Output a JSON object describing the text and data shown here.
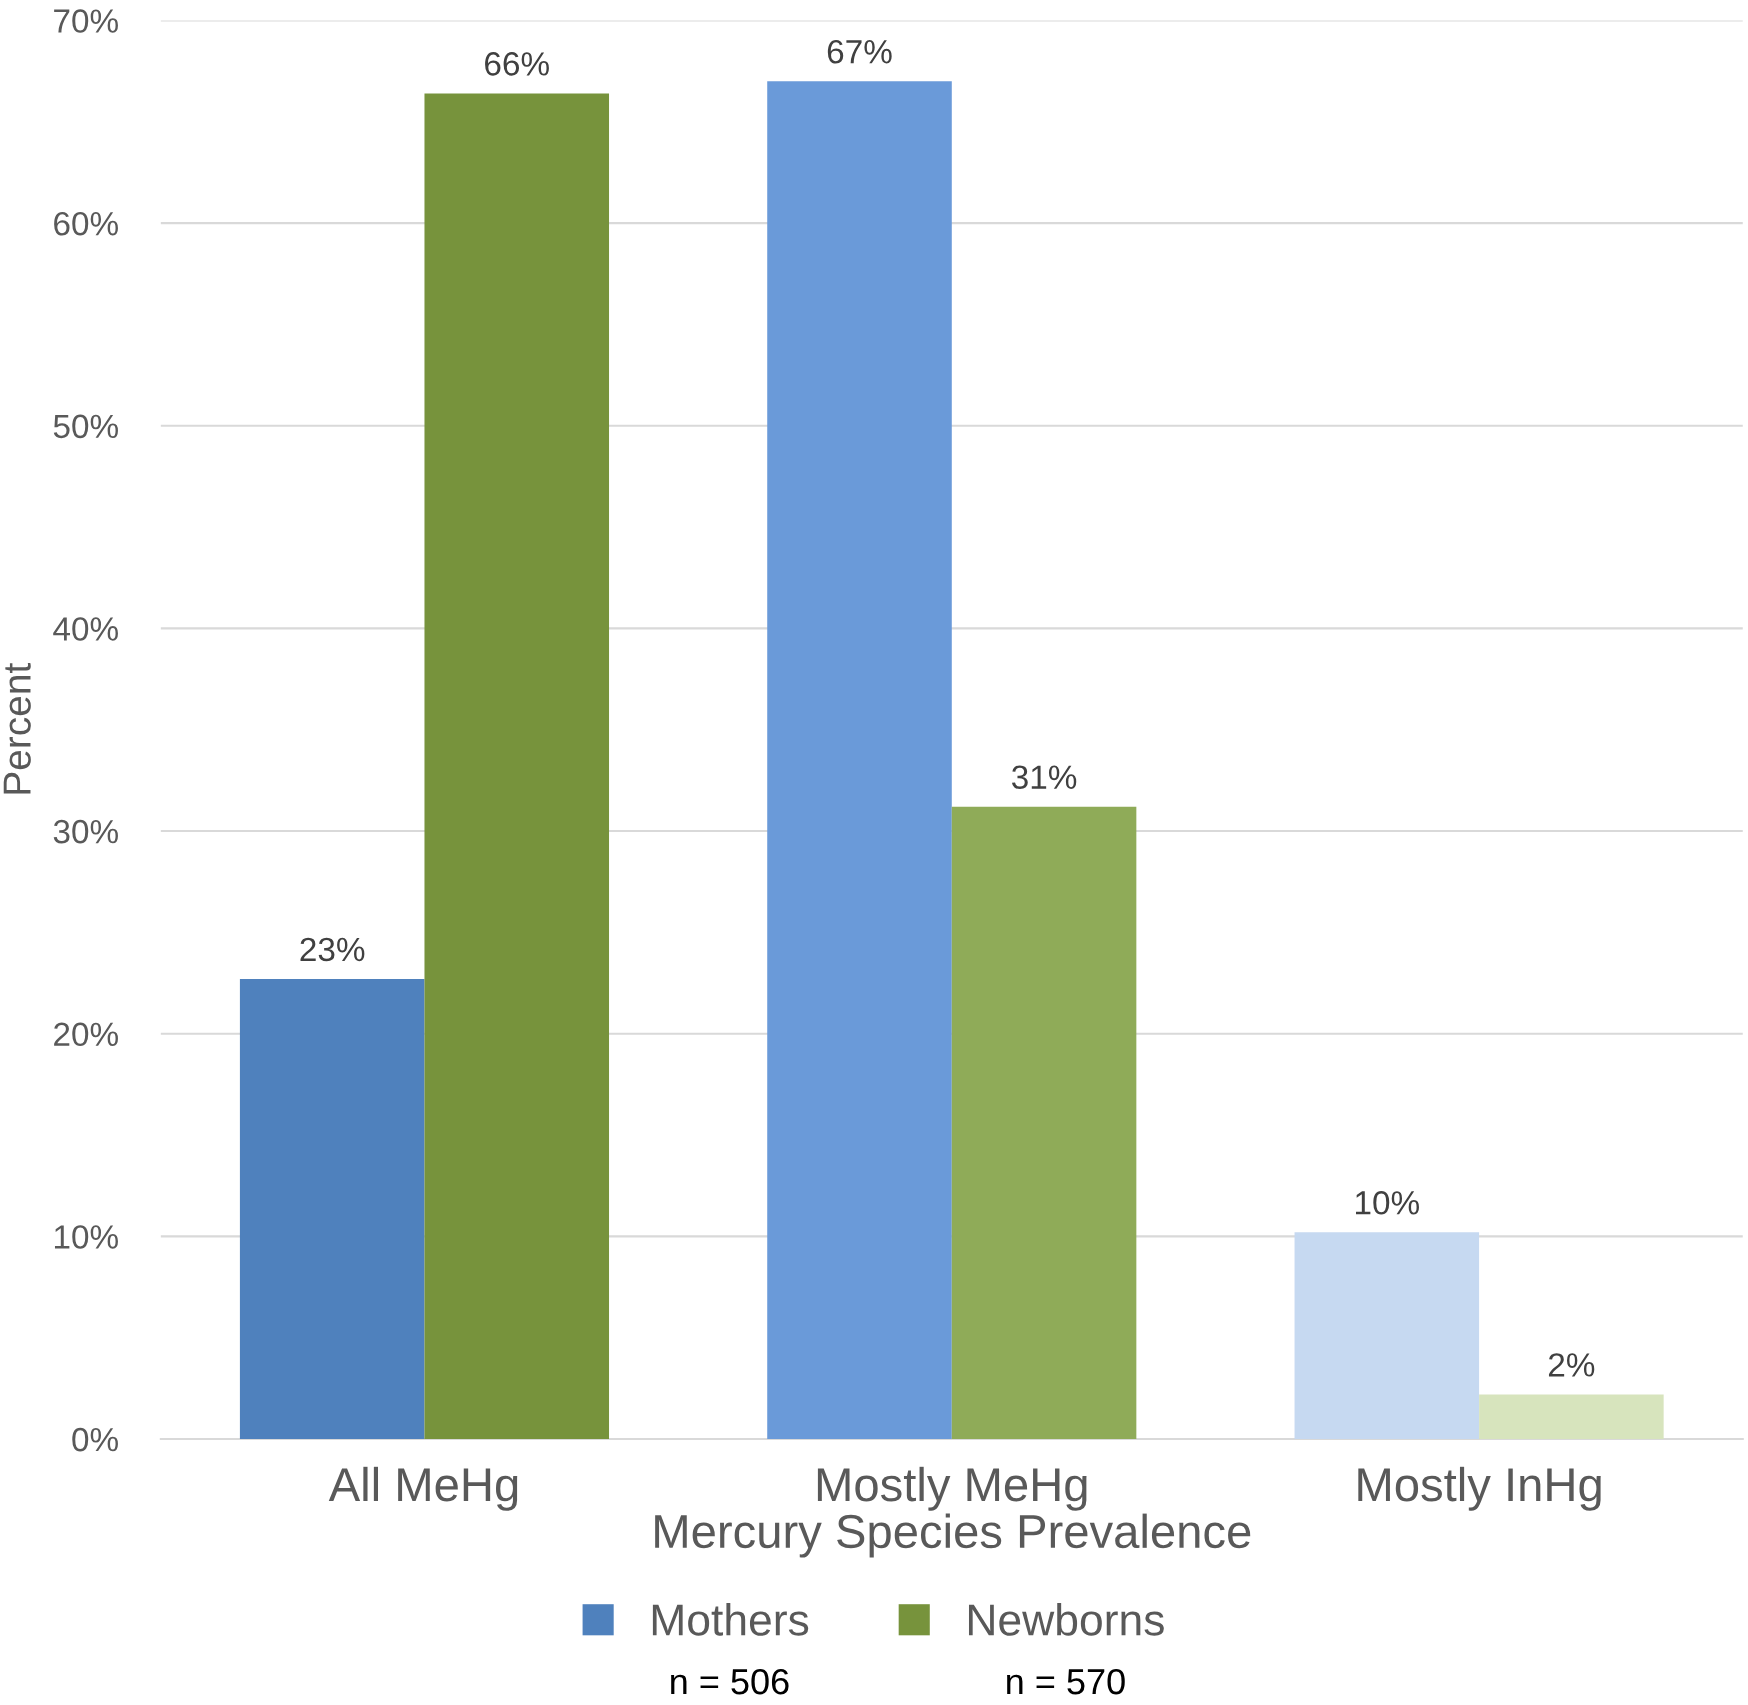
{
  "chart_data": {
    "type": "bar",
    "xlabel": "Mercury Species Prevalence",
    "ylabel": "Percent",
    "categories": [
      "All MeHg",
      "Mostly MeHg",
      "Mostly InHg"
    ],
    "series": [
      {
        "name": "Mothers",
        "color": "#4f81bd",
        "colors": [
          "#4f81bd",
          "#6a9ad9",
          "#c6d9f1"
        ],
        "values": [
          22.7,
          67.0,
          10.2
        ],
        "value_labels": [
          "23%",
          "67%",
          "10%"
        ]
      },
      {
        "name": "Newborns",
        "color": "#77933c",
        "colors": [
          "#77933c",
          "#8fab58",
          "#d7e4bd"
        ],
        "values": [
          66.4,
          31.2,
          2.2
        ],
        "value_labels": [
          "66%",
          "31%",
          "2%"
        ]
      }
    ],
    "ylim": [
      0,
      70
    ],
    "yticks": [
      {
        "value": 0,
        "label": "0%"
      },
      {
        "value": 10,
        "label": "10%"
      },
      {
        "value": 20,
        "label": "20%"
      },
      {
        "value": 30,
        "label": "30%"
      },
      {
        "value": 40,
        "label": "40%"
      },
      {
        "value": 50,
        "label": "50%"
      },
      {
        "value": 60,
        "label": "60%"
      },
      {
        "value": 70,
        "label": "70%"
      }
    ],
    "grid": "y",
    "legend": "bottom",
    "annotations": [
      "n = 506",
      "n = 570"
    ]
  }
}
